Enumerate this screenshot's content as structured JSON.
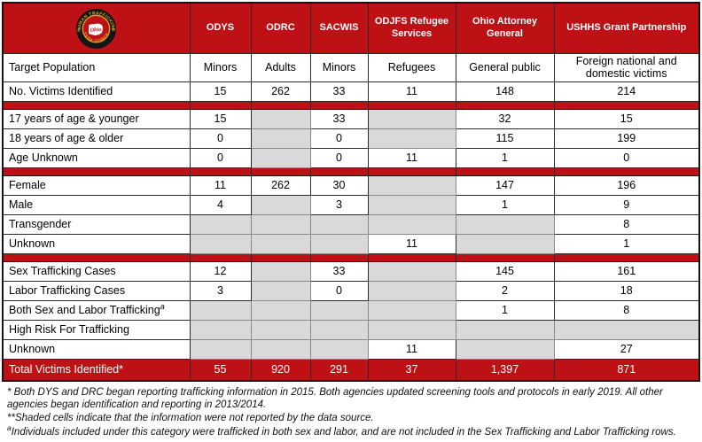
{
  "table": {
    "logo": {
      "alt": "Ohio Human Trafficking Task Force seal",
      "ring_text_top": "HUMAN TRAFFICKING",
      "ring_text_bottom": "TASK FORCE",
      "center_text": "Ohio",
      "colors": {
        "ring": "#151515",
        "gold": "#d9a520",
        "field": "#be1116",
        "state": "#ffffff"
      }
    },
    "accent_red": "#be1116",
    "shaded_cell_color": "#d9d9d9",
    "columns": [
      "ODYS",
      "ODRC",
      "SACWIS",
      "ODJFS Refugee Services",
      "Ohio Attorney General",
      "USHHS Grant Partnership"
    ],
    "rows": [
      {
        "t": "data",
        "cls": "tp",
        "label": "Target Population",
        "cells": [
          "Minors",
          "Adults",
          "Minors",
          "Refugees",
          "General public",
          "Foreign national and domestic victims"
        ]
      },
      {
        "t": "data",
        "label": "No. Victims Identified",
        "cells": [
          "15",
          "262",
          "33",
          "11",
          "148",
          "214"
        ]
      },
      {
        "t": "sep"
      },
      {
        "t": "data",
        "label": "17 years of age & younger",
        "cells": [
          "15",
          null,
          "33",
          null,
          "32",
          "15"
        ]
      },
      {
        "t": "data",
        "label": "18 years of age & older",
        "cells": [
          "0",
          null,
          "0",
          null,
          "115",
          "199"
        ]
      },
      {
        "t": "data",
        "label": "Age Unknown",
        "cells": [
          "0",
          null,
          "0",
          "11",
          "1",
          "0"
        ]
      },
      {
        "t": "sep"
      },
      {
        "t": "data",
        "label": "Female",
        "cells": [
          "11",
          "262",
          "30",
          null,
          "147",
          "196"
        ]
      },
      {
        "t": "data",
        "label": "Male",
        "cells": [
          "4",
          null,
          "3",
          null,
          "1",
          "9"
        ]
      },
      {
        "t": "data",
        "label": "Transgender",
        "cells": [
          null,
          null,
          null,
          null,
          null,
          "8"
        ]
      },
      {
        "t": "data",
        "label": "Unknown",
        "cells": [
          null,
          null,
          null,
          "11",
          null,
          "1"
        ]
      },
      {
        "t": "sep"
      },
      {
        "t": "data",
        "label": "Sex Trafficking Cases",
        "cells": [
          "12",
          null,
          "33",
          null,
          "145",
          "161"
        ]
      },
      {
        "t": "data",
        "label": "Labor Trafficking Cases",
        "cells": [
          "3",
          null,
          "0",
          null,
          "2",
          "18"
        ]
      },
      {
        "t": "data",
        "label": "Both Sex and Labor Trafficking",
        "sup": "a",
        "cells": [
          null,
          null,
          null,
          null,
          "1",
          "8"
        ]
      },
      {
        "t": "data",
        "label": "High Risk For Trafficking",
        "cells": [
          null,
          null,
          null,
          null,
          null,
          null
        ]
      },
      {
        "t": "data",
        "label": "Unknown",
        "cells": [
          null,
          null,
          null,
          "11",
          null,
          "27"
        ]
      },
      {
        "t": "total",
        "label": "Total Victims Identified*",
        "cells": [
          "55",
          "920",
          "291",
          "37",
          "1,397",
          "871"
        ]
      }
    ]
  },
  "footnotes": [
    {
      "marker": "* ",
      "sup": false,
      "text": "Both DYS and DRC began reporting trafficking information in 2015. Both agencies updated screening tools and protocols in early 2019. All other agencies began identification and reporting in 2013/2014."
    },
    {
      "marker": "**",
      "sup": false,
      "text": "Shaded cells indicate that the information were not reported by the data source."
    },
    {
      "marker": "a",
      "sup": true,
      "text": "Individuals included under this category were trafficked in both sex and labor, and are not included in the Sex Trafficking and Labor Trafficking rows."
    }
  ]
}
